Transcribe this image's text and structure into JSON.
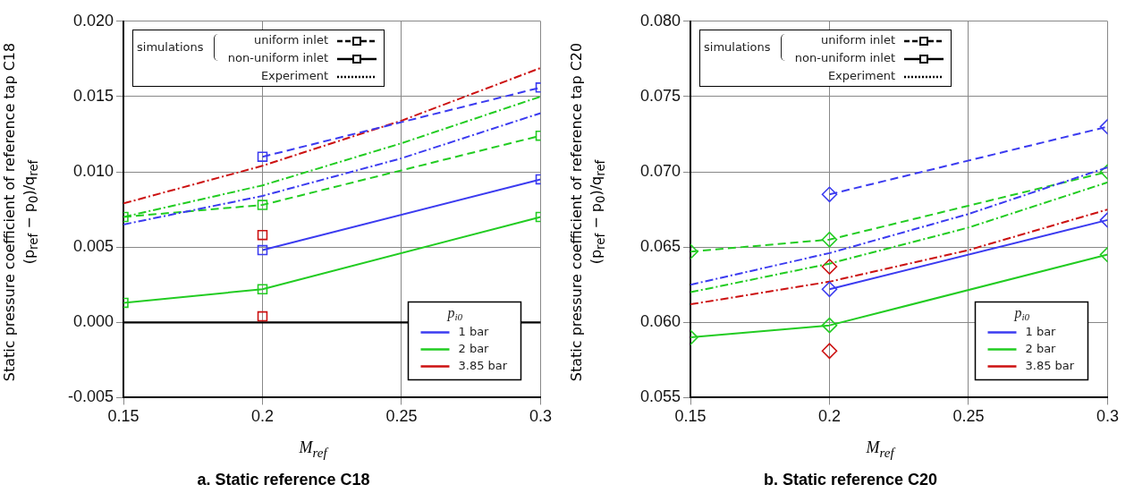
{
  "chart_data": [
    {
      "type": "line",
      "title": "a. Static reference C18",
      "xlabel": "M$_{ref}$",
      "ylabel": "Static pressure coefficient of reference tap C18 (p$_{ref}$ − p$_{0}$)/q$_{ref}$",
      "legend_title": "p$_{i0}$",
      "legend": "bottom right",
      "grid": true,
      "marker": "square",
      "xlim": [
        0.15,
        0.3
      ],
      "xticks": [
        0.15,
        0.2,
        0.25,
        0.3
      ],
      "ylim": [
        -0.005,
        0.02
      ],
      "yticks": [
        {
          "value": -0.005,
          "label": "-0.005"
        },
        {
          "value": 0,
          "label": "0.000"
        },
        {
          "value": 0.005,
          "label": "0.005"
        },
        {
          "value": 0.01,
          "label": "0.010"
        },
        {
          "value": 0.015,
          "label": "0.015"
        },
        {
          "value": 0.02,
          "label": "0.020"
        }
      ],
      "ref_lines": [
        {
          "axis": "y",
          "value": 0,
          "color": "#000000"
        }
      ],
      "annotations": [
        "simulations",
        "uniform inlet",
        "non-uniform inlet",
        "Experiment"
      ],
      "series": [
        {
          "color": "#3b3bf0",
          "line_style": "dashed",
          "x": [
            0.2,
            0.3
          ],
          "values": [
            0.011,
            0.0156
          ]
        },
        {
          "name": "1 bar",
          "color": "#3b3bf0",
          "line_style": "solid",
          "x": [
            0.2,
            0.3
          ],
          "values": [
            0.0048,
            0.0095
          ]
        },
        {
          "color": "#3b3bf0",
          "line_style": "dotted",
          "marker": "none",
          "x": [
            0.15,
            0.2,
            0.25,
            0.3
          ],
          "values": [
            0.0065,
            0.0084,
            0.0109,
            0.0139
          ]
        },
        {
          "color": "#22cc22",
          "line_style": "dashed",
          "x": [
            0.15,
            0.2,
            0.3
          ],
          "values": [
            0.007,
            0.0078,
            0.0124
          ]
        },
        {
          "name": "2 bar",
          "color": "#22cc22",
          "line_style": "solid",
          "x": [
            0.15,
            0.2,
            0.3
          ],
          "values": [
            0.0013,
            0.0022,
            0.007
          ]
        },
        {
          "color": "#22cc22",
          "line_style": "dotted",
          "marker": "none",
          "x": [
            0.15,
            0.2,
            0.25,
            0.3
          ],
          "values": [
            0.007,
            0.0091,
            0.0119,
            0.015
          ]
        },
        {
          "color": "#cc1111",
          "line_style": "dashed",
          "x": [
            0.2
          ],
          "values": [
            0.0058
          ]
        },
        {
          "name": "3.85 bar",
          "color": "#cc1111",
          "line_style": "solid",
          "x": [
            0.2
          ],
          "values": [
            0.0004
          ]
        },
        {
          "color": "#cc1111",
          "line_style": "dotted",
          "marker": "none",
          "x": [
            0.15,
            0.2,
            0.25,
            0.3
          ],
          "values": [
            0.0079,
            0.0104,
            0.0134,
            0.0169
          ]
        }
      ]
    },
    {
      "type": "line",
      "title": "b. Static reference C20",
      "xlabel": "M$_{ref}$",
      "ylabel": "Static pressure coefficient of reference tap C20 (p$_{ref}$ − p$_{0}$)/q$_{ref}$",
      "legend_title": "p$_{i0}$",
      "legend": "bottom right",
      "grid": true,
      "marker": "diamond",
      "xlim": [
        0.15,
        0.3
      ],
      "xticks": [
        0.15,
        0.2,
        0.25,
        0.3
      ],
      "ylim": [
        0.055,
        0.08
      ],
      "yticks": [
        {
          "value": 0.055,
          "label": "0.055"
        },
        {
          "value": 0.06,
          "label": "0.060"
        },
        {
          "value": 0.065,
          "label": "0.065"
        },
        {
          "value": 0.07,
          "label": "0.070"
        },
        {
          "value": 0.075,
          "label": "0.075"
        },
        {
          "value": 0.08,
          "label": "0.080"
        }
      ],
      "annotations": [
        "simulations",
        "uniform inlet",
        "non-uniform inlet",
        "Experiment"
      ],
      "series": [
        {
          "color": "#3b3bf0",
          "line_style": "dashed",
          "x": [
            0.2,
            0.3
          ],
          "values": [
            0.0685,
            0.073
          ]
        },
        {
          "name": "1 bar",
          "color": "#3b3bf0",
          "line_style": "solid",
          "x": [
            0.2,
            0.3
          ],
          "values": [
            0.0622,
            0.0668
          ]
        },
        {
          "color": "#3b3bf0",
          "line_style": "dotted",
          "marker": "none",
          "x": [
            0.15,
            0.2,
            0.25,
            0.3
          ],
          "values": [
            0.0625,
            0.0646,
            0.0672,
            0.0703
          ]
        },
        {
          "color": "#22cc22",
          "line_style": "dashed",
          "x": [
            0.15,
            0.2,
            0.3
          ],
          "values": [
            0.0647,
            0.0655,
            0.07
          ]
        },
        {
          "name": "2 bar",
          "color": "#22cc22",
          "line_style": "solid",
          "x": [
            0.15,
            0.2,
            0.3
          ],
          "values": [
            0.059,
            0.0598,
            0.0645
          ]
        },
        {
          "color": "#22cc22",
          "line_style": "dotted",
          "marker": "none",
          "x": [
            0.15,
            0.2,
            0.25,
            0.3
          ],
          "values": [
            0.062,
            0.0639,
            0.0663,
            0.0693
          ]
        },
        {
          "color": "#cc1111",
          "line_style": "dashed",
          "x": [
            0.2
          ],
          "values": [
            0.0637
          ]
        },
        {
          "name": "3.85 bar",
          "color": "#cc1111",
          "line_style": "solid",
          "x": [
            0.2
          ],
          "values": [
            0.0581
          ]
        },
        {
          "color": "#cc1111",
          "line_style": "dotted",
          "marker": "none",
          "x": [
            0.15,
            0.2,
            0.25,
            0.3
          ],
          "values": [
            0.0612,
            0.0627,
            0.0648,
            0.0675
          ]
        }
      ]
    }
  ]
}
